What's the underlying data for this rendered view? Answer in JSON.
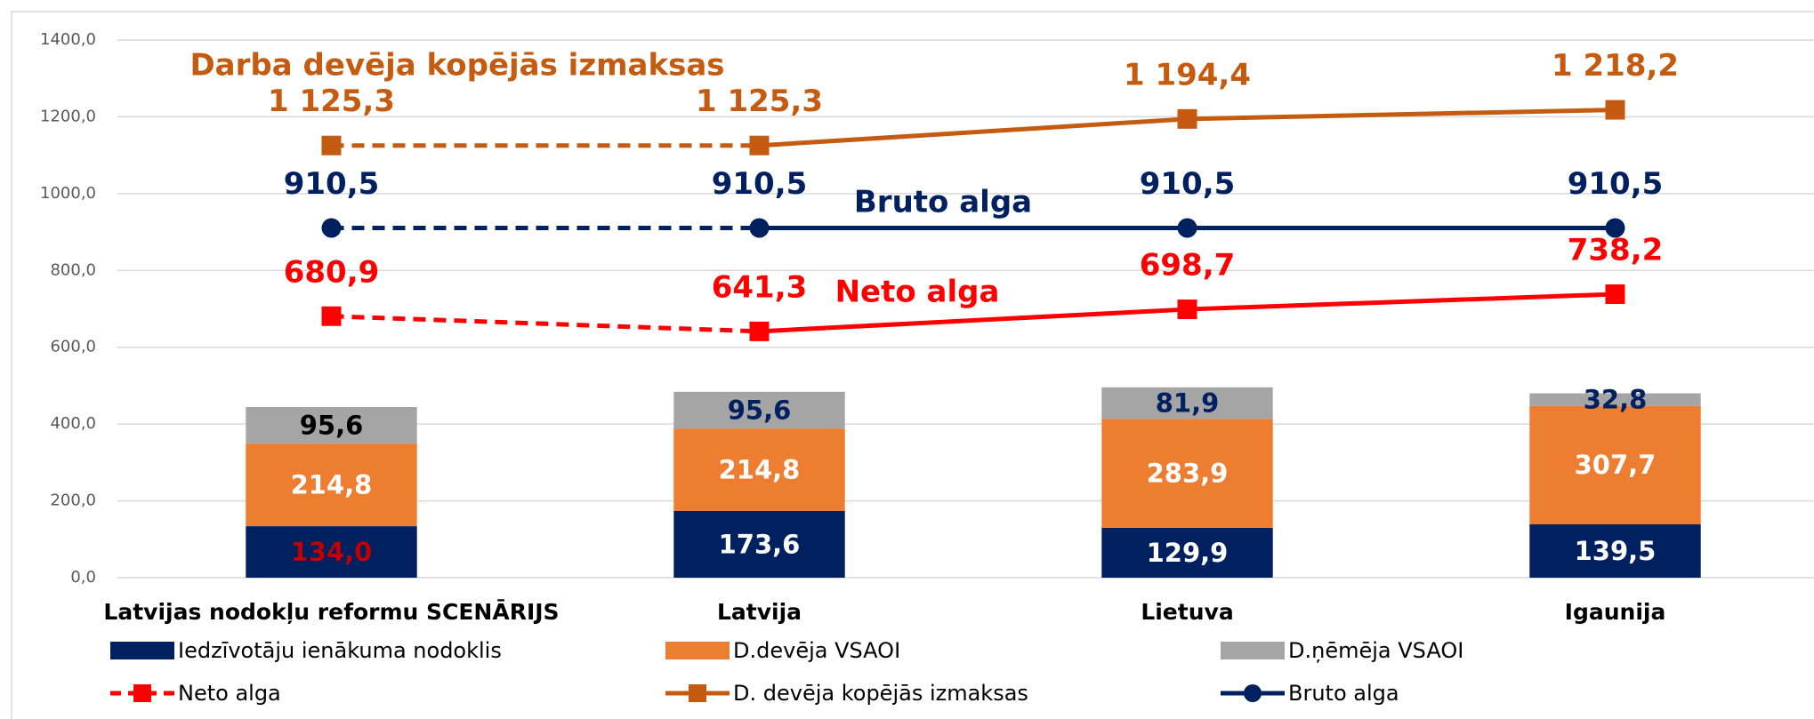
{
  "chart_data": {
    "type": "stacked-bar-line",
    "categories": [
      "Latvijas nodokļu reformu SCENĀRIJS",
      "Latvija",
      "Lietuva",
      "Igaunija"
    ],
    "ylim": [
      0,
      1400
    ],
    "yticks": [
      {
        "value": 0,
        "label": "0,0"
      },
      {
        "value": 200,
        "label": "200,0"
      },
      {
        "value": 400,
        "label": "400,0"
      },
      {
        "value": 600,
        "label": "600,0"
      },
      {
        "value": 800,
        "label": "800,0"
      },
      {
        "value": 1000,
        "label": "1000,0"
      },
      {
        "value": 1200,
        "label": "1200,0"
      },
      {
        "value": 1400,
        "label": "1400,0"
      }
    ],
    "grid": true,
    "annotations": [
      {
        "text": "Darba devēja kopējās izmaksas",
        "color": "#c55a11"
      },
      {
        "text": "Bruto alga",
        "color": "#002060"
      },
      {
        "text": "Neto alga",
        "color": "#ff0000"
      }
    ],
    "series": [
      {
        "name": "Iedzīvotāju ienākuma nodoklis",
        "kind": "bar",
        "color": "#002060",
        "values": [
          134.0,
          173.6,
          129.9,
          139.5
        ],
        "value_labels": [
          "134,0",
          "173,6",
          "129,9",
          "139,5"
        ],
        "value_label_colors": [
          "#c00000",
          "#ffffff",
          "#ffffff",
          "#ffffff"
        ]
      },
      {
        "name": "D.devēja VSAOI",
        "kind": "bar",
        "color": "#ed7d31",
        "values": [
          214.8,
          214.8,
          283.9,
          307.7
        ],
        "value_labels": [
          "214,8",
          "214,8",
          "283,9",
          "307,7"
        ],
        "value_label_colors": [
          "#ffffff",
          "#ffffff",
          "#ffffff",
          "#ffffff"
        ]
      },
      {
        "name": "D.ņēmēja VSAOI",
        "kind": "bar",
        "color": "#a5a5a5",
        "values": [
          95.6,
          95.6,
          81.9,
          32.8
        ],
        "value_labels": [
          "95,6",
          "95,6",
          "81,9",
          "32,8"
        ],
        "value_label_colors": [
          "#000000",
          "#002060",
          "#002060",
          "#002060"
        ]
      },
      {
        "name": "Neto alga",
        "kind": "line",
        "color": "#ff0000",
        "marker": "square",
        "dash_first_segment": true,
        "legend_dashed": true,
        "values": [
          680.9,
          641.3,
          698.7,
          738.2
        ],
        "value_labels": [
          "680,9",
          "641,3",
          "698,7",
          "738,2"
        ]
      },
      {
        "name": "D. devēja kopējās izmaksas",
        "kind": "line",
        "color": "#c55a11",
        "marker": "square",
        "dash_first_segment": true,
        "legend_dashed": false,
        "values": [
          1125.3,
          1125.3,
          1194.4,
          1218.2
        ],
        "value_labels": [
          "1 125,3",
          "1 125,3",
          "1 194,4",
          "1 218,2"
        ]
      },
      {
        "name": "Bruto alga",
        "kind": "line",
        "color": "#002060",
        "marker": "circle",
        "dash_first_segment": true,
        "legend_dashed": false,
        "values": [
          910.5,
          910.5,
          910.5,
          910.5
        ],
        "value_labels": [
          "910,5",
          "910,5",
          "910,5",
          "910,5"
        ]
      }
    ]
  }
}
